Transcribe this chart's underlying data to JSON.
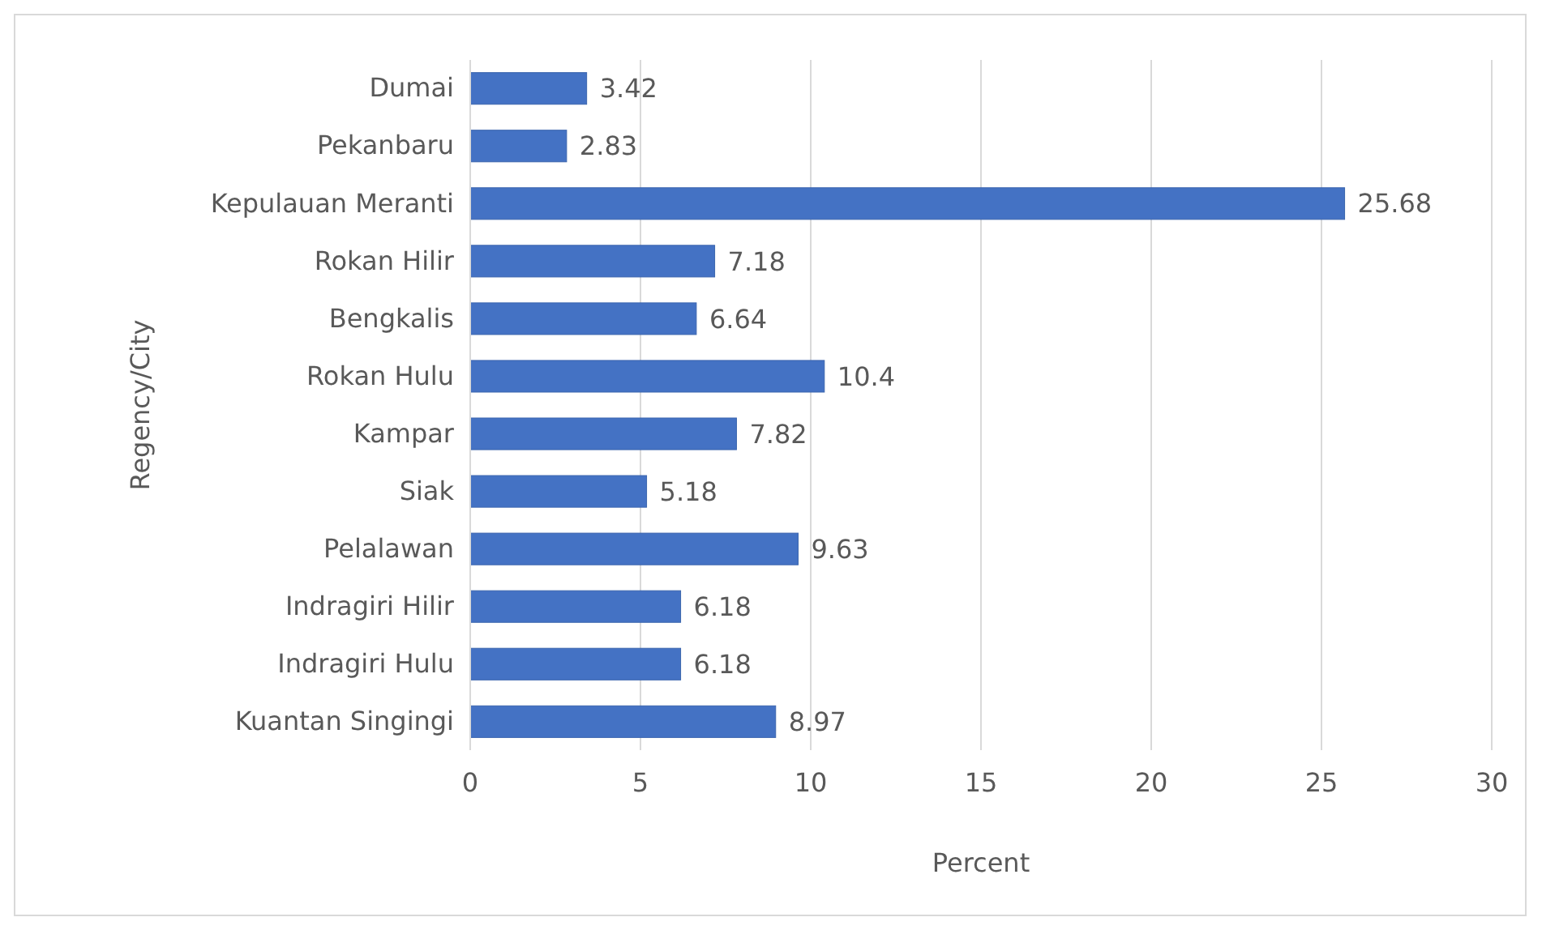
{
  "chart_data": {
    "type": "bar",
    "orientation": "horizontal",
    "xlabel": "Percent",
    "ylabel": "Regency/City",
    "categories": [
      "Dumai",
      "Pekanbaru",
      "Kepulauan Meranti",
      "Rokan Hilir",
      "Bengkalis",
      "Rokan Hulu",
      "Kampar",
      "Siak",
      "Pelalawan",
      "Indragiri Hilir",
      "Indragiri Hulu",
      "Kuantan Singingi"
    ],
    "values": [
      3.42,
      2.83,
      25.68,
      7.18,
      6.64,
      10.4,
      7.82,
      5.18,
      9.63,
      6.18,
      6.18,
      8.97
    ],
    "color": "#4472c4",
    "xlim": [
      0,
      30
    ],
    "xticks": [
      0,
      5,
      10,
      15,
      20,
      25,
      30
    ],
    "grid": "x",
    "data_labels": true
  }
}
